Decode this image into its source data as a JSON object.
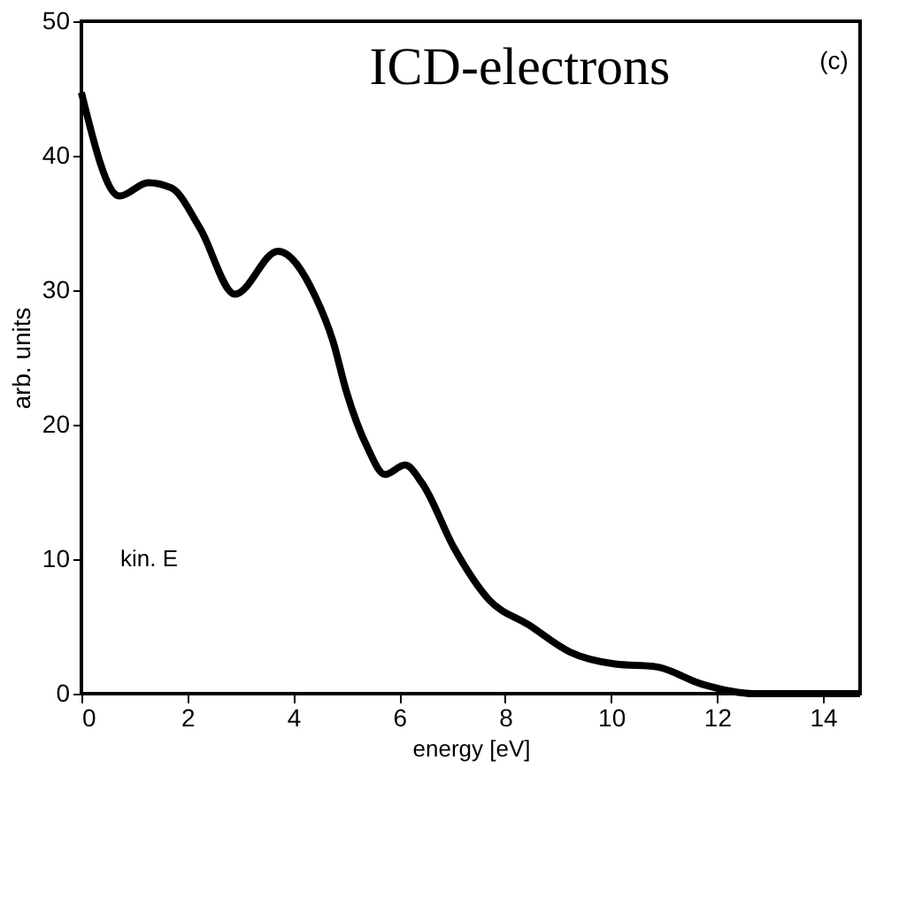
{
  "chart_data": {
    "type": "line",
    "xlabel": "energy [eV]",
    "ylabel": "arb. units",
    "annotations": [
      "ICD-electrons",
      "(c)",
      "kin. E"
    ],
    "x": [
      0,
      0.72,
      1.26,
      1.7,
      2.24,
      2.9,
      3.71,
      4.42,
      4.75,
      5.0,
      5.4,
      5.73,
      6.11,
      6.44,
      7.04,
      7.69,
      8.45,
      9.22,
      10.08,
      10.85,
      11.72,
      12.7,
      13.5,
      14.7
    ],
    "series": [
      {
        "color": "#000000",
        "values": [
          44.7,
          37.0,
          38.0,
          37.6,
          34.6,
          29.7,
          32.9,
          29.5,
          26.2,
          22.5,
          18.3,
          16.3,
          17.0,
          15.6,
          10.8,
          7.0,
          5.1,
          3.1,
          2.2,
          2.0,
          0.7,
          0,
          0,
          0
        ]
      }
    ],
    "xlim": [
      0,
      14.7
    ],
    "xticks": [
      0,
      2,
      4,
      6,
      8,
      10,
      12,
      14
    ],
    "ylim": [
      0,
      50
    ],
    "yticks": [
      0,
      10,
      20,
      30,
      40,
      50
    ],
    "grid": false,
    "legend": false,
    "marker": "none",
    "line_style": "solid"
  }
}
